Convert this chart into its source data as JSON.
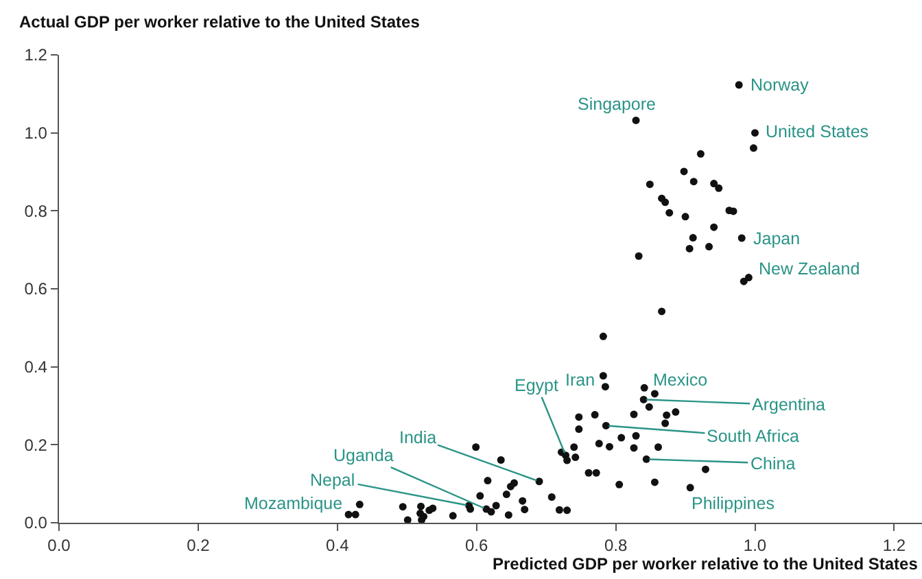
{
  "chart_data": {
    "type": "scatter",
    "xlabel": "Predicted GDP per worker relative to the United States",
    "ylabel": "Actual GDP per worker relative to the United States",
    "x": [
      0.977,
      0.829,
      1.0,
      0.998,
      0.922,
      0.898,
      0.912,
      0.849,
      0.941,
      0.948,
      0.866,
      0.871,
      0.877,
      0.9,
      0.963,
      0.969,
      0.941,
      0.911,
      0.981,
      0.906,
      0.934,
      0.833,
      0.991,
      0.984,
      0.866,
      0.782,
      0.782,
      0.785,
      0.841,
      0.856,
      0.84,
      0.848,
      0.826,
      0.873,
      0.886,
      0.871,
      0.747,
      0.77,
      0.747,
      0.786,
      0.808,
      0.829,
      0.776,
      0.791,
      0.826,
      0.861,
      0.722,
      0.728,
      0.74,
      0.742,
      0.73,
      0.844,
      0.929,
      0.761,
      0.772,
      0.805,
      0.856,
      0.907,
      0.69,
      0.654,
      0.649,
      0.643,
      0.666,
      0.669,
      0.708,
      0.719,
      0.73,
      0.646,
      0.628,
      0.599,
      0.635,
      0.616,
      0.605,
      0.589,
      0.591,
      0.614,
      0.621,
      0.432,
      0.416,
      0.426,
      0.494,
      0.501,
      0.52,
      0.519,
      0.521,
      0.524,
      0.532,
      0.537,
      0.566
    ],
    "series": [
      {
        "color": "#111111",
        "values": [
          1.123,
          1.032,
          1.0,
          0.961,
          0.946,
          0.901,
          0.875,
          0.868,
          0.87,
          0.858,
          0.832,
          0.822,
          0.795,
          0.785,
          0.801,
          0.799,
          0.758,
          0.731,
          0.73,
          0.703,
          0.708,
          0.684,
          0.629,
          0.619,
          0.542,
          0.478,
          0.377,
          0.349,
          0.346,
          0.331,
          0.316,
          0.297,
          0.278,
          0.276,
          0.284,
          0.255,
          0.271,
          0.277,
          0.24,
          0.249,
          0.218,
          0.223,
          0.203,
          0.195,
          0.192,
          0.194,
          0.181,
          0.173,
          0.194,
          0.168,
          0.16,
          0.163,
          0.137,
          0.128,
          0.128,
          0.098,
          0.104,
          0.09,
          0.106,
          0.102,
          0.093,
          0.073,
          0.056,
          0.034,
          0.066,
          0.033,
          0.032,
          0.02,
          0.044,
          0.194,
          0.161,
          0.108,
          0.069,
          0.044,
          0.035,
          0.035,
          0.028,
          0.047,
          0.021,
          0.021,
          0.041,
          0.007,
          0.042,
          0.024,
          0.007,
          0.016,
          0.032,
          0.037,
          0.018
        ]
      }
    ],
    "marker": "circle",
    "xlim": [
      0,
      1.24
    ],
    "ylim": [
      0,
      1.2
    ],
    "xticks": [
      {
        "value": 0,
        "label": "0.0"
      },
      {
        "value": 0.2,
        "label": "0.2"
      },
      {
        "value": 0.4,
        "label": "0.4"
      },
      {
        "value": 0.6,
        "label": "0.6"
      },
      {
        "value": 0.8,
        "label": "0.8"
      },
      {
        "value": 1.0,
        "label": "1.0"
      },
      {
        "value": 1.2,
        "label": "1.2"
      }
    ],
    "yticks": [
      {
        "value": 0,
        "label": "0.0"
      },
      {
        "value": 0.2,
        "label": "0.2"
      },
      {
        "value": 0.4,
        "label": "0.4"
      },
      {
        "value": 0.6,
        "label": "0.6"
      },
      {
        "value": 0.8,
        "label": "0.8"
      },
      {
        "value": 1.0,
        "label": "1.0"
      },
      {
        "value": 1.2,
        "label": "1.2"
      }
    ],
    "annotations": [
      {
        "text": "Norway",
        "x": 0.977,
        "y": 1.123
      },
      {
        "text": "Singapore",
        "x": 0.829,
        "y": 1.032
      },
      {
        "text": "United States",
        "x": 1.0,
        "y": 1.0
      },
      {
        "text": "Japan",
        "x": 0.981,
        "y": 0.73
      },
      {
        "text": "New Zealand",
        "x": 0.991,
        "y": 0.629
      },
      {
        "text": "Iran",
        "x": 0.782,
        "y": 0.377
      },
      {
        "text": "Mexico",
        "x": 0.841,
        "y": 0.346
      },
      {
        "text": "Egypt",
        "x": 0.728,
        "y": 0.173
      },
      {
        "text": "Argentina",
        "x": 0.84,
        "y": 0.316
      },
      {
        "text": "South Africa",
        "x": 0.786,
        "y": 0.249
      },
      {
        "text": "China",
        "x": 0.844,
        "y": 0.163
      },
      {
        "text": "Philippines",
        "x": 0.907,
        "y": 0.09
      },
      {
        "text": "India",
        "x": 0.69,
        "y": 0.106
      },
      {
        "text": "Uganda",
        "x": 0.614,
        "y": 0.035
      },
      {
        "text": "Nepal",
        "x": 0.589,
        "y": 0.044
      },
      {
        "text": "Mozambique",
        "x": 0.416,
        "y": 0.021
      }
    ]
  }
}
